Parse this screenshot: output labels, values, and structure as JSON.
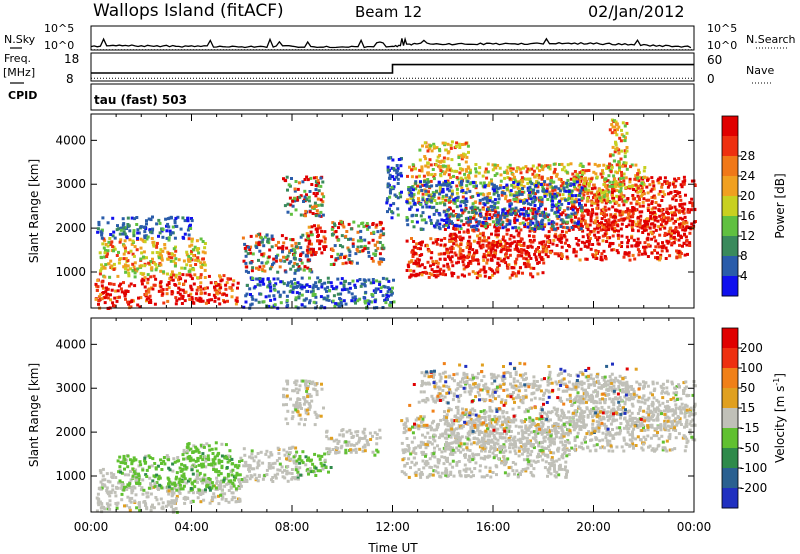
{
  "header": {
    "site": "Wallops Island (fitACF)",
    "beam": "Beam 12",
    "date": "02/Jan/2012"
  },
  "chart_data": [
    {
      "type": "line",
      "panel": "noise",
      "labels": {
        "left_top": "N.Sky",
        "right_top": "N.Search"
      },
      "y_ticks": [
        "10^5",
        "10^0"
      ],
      "ylim_log10": [
        0,
        5
      ],
      "series": [
        {
          "key": "nsky",
          "style": "solid",
          "x_hours": [
            0,
            1,
            2,
            3,
            4,
            5,
            6,
            7,
            8,
            9,
            10,
            11,
            12,
            12.5,
            13,
            14,
            15,
            16,
            17,
            18,
            19,
            20,
            21,
            22,
            23,
            24
          ],
          "log10_values": [
            0.8,
            0.9,
            0.85,
            0.8,
            0.75,
            0.7,
            0.65,
            0.7,
            0.75,
            0.7,
            0.65,
            0.7,
            0.7,
            1.1,
            1.3,
            1.2,
            1.25,
            1.3,
            1.25,
            1.3,
            1.4,
            1.35,
            1.2,
            1.0,
            0.8,
            0.6
          ]
        },
        {
          "key": "nsearch",
          "style": "dotted",
          "x_hours": [
            0,
            24
          ],
          "log10_values": [
            0.05,
            0.05
          ]
        }
      ]
    },
    {
      "type": "line",
      "panel": "frequency",
      "labels": {
        "left_top": "Freq.",
        "left_unit": "[MHz]",
        "left_bottom": "CPID",
        "right_top": "Nave"
      },
      "y_ticks_left": [
        "18",
        "8"
      ],
      "y_ticks_right": [
        "60",
        "0"
      ],
      "series": [
        {
          "key": "freq",
          "style": "solid",
          "x_hours": [
            0,
            0.2,
            12,
            12,
            24
          ],
          "values_mhz": [
            10.5,
            10.5,
            10.5,
            14,
            14
          ]
        },
        {
          "key": "nave",
          "style": "dotted",
          "x_hours": [
            0,
            24
          ],
          "values": [
            2,
            2
          ]
        }
      ]
    },
    {
      "type": "table",
      "panel": "cpid",
      "text": "tau (fast) 503"
    },
    {
      "type": "heatmap",
      "panel": "power",
      "ylabel": "Slant Range [km]",
      "y_ticks": [
        "1000",
        "2000",
        "3000",
        "4000"
      ],
      "ylim_km": [
        180,
        4600
      ],
      "colorbar": {
        "label": "Power [dB]",
        "ticks": [
          "4",
          "8",
          "12",
          "16",
          "20",
          "24",
          "28"
        ],
        "colors": [
          "#1010ee",
          "#2a5caa",
          "#3a8a5c",
          "#60c040",
          "#c8d020",
          "#f0a020",
          "#f07818",
          "#ee3010",
          "#e00000"
        ]
      },
      "regions": [
        {
          "x0": 0.1,
          "x1": 2.0,
          "y0": 200,
          "y1": 850,
          "level": "high"
        },
        {
          "x0": 2.0,
          "x1": 5.8,
          "y0": 300,
          "y1": 1000,
          "level": "high"
        },
        {
          "x0": 0.3,
          "x1": 4.5,
          "y0": 900,
          "y1": 1800,
          "level": "mid"
        },
        {
          "x0": 0.2,
          "x1": 4.0,
          "y0": 1800,
          "y1": 2300,
          "level": "low"
        },
        {
          "x0": 6.0,
          "x1": 8.8,
          "y0": 1000,
          "y1": 1900,
          "level": "mix"
        },
        {
          "x0": 7.6,
          "x1": 9.2,
          "y0": 2300,
          "y1": 3200,
          "level": "mix"
        },
        {
          "x0": 8.5,
          "x1": 9.3,
          "y0": 1400,
          "y1": 2100,
          "level": "high"
        },
        {
          "x0": 9.5,
          "x1": 11.6,
          "y0": 1200,
          "y1": 2200,
          "level": "mix"
        },
        {
          "x0": 6.0,
          "x1": 12.0,
          "y0": 200,
          "y1": 900,
          "level": "low"
        },
        {
          "x0": 11.7,
          "x1": 12.3,
          "y0": 2200,
          "y1": 3700,
          "level": "low"
        },
        {
          "x0": 12.5,
          "x1": 18.0,
          "y0": 900,
          "y1": 1800,
          "level": "high"
        },
        {
          "x0": 14.0,
          "x1": 23.8,
          "y0": 1300,
          "y1": 2500,
          "level": "high"
        },
        {
          "x0": 19.0,
          "x1": 24.0,
          "y0": 2000,
          "y1": 3200,
          "level": "high"
        },
        {
          "x0": 12.5,
          "x1": 22.0,
          "y0": 2600,
          "y1": 3500,
          "level": "mid"
        },
        {
          "x0": 13.0,
          "x1": 15.0,
          "y0": 3500,
          "y1": 4000,
          "level": "mid"
        },
        {
          "x0": 20.5,
          "x1": 21.3,
          "y0": 3000,
          "y1": 4500,
          "level": "mid"
        },
        {
          "x0": 12.5,
          "x1": 19.5,
          "y0": 2000,
          "y1": 3100,
          "level": "low"
        }
      ]
    },
    {
      "type": "heatmap",
      "panel": "velocity",
      "xlabel": "Time UT",
      "ylabel": "Slant Range [km]",
      "x_ticks": [
        "00:00",
        "04:00",
        "08:00",
        "12:00",
        "16:00",
        "20:00",
        "00:00"
      ],
      "y_ticks": [
        "1000",
        "2000",
        "3000",
        "4000"
      ],
      "ylim_km": [
        180,
        4600
      ],
      "colorbar": {
        "label": "Velocity [m s",
        "label_exponent": "-1",
        "label_close": "]",
        "ticks": [
          "200",
          "100",
          "50",
          "15",
          "-15",
          "-50",
          "-100",
          "-200"
        ],
        "colors": [
          "#2030c0",
          "#2a6090",
          "#2e8a4a",
          "#60c030",
          "#c0c0b8",
          "#e0a020",
          "#f08018",
          "#ee3010",
          "#e00000"
        ]
      },
      "regions": [
        {
          "x0": 0.1,
          "x1": 3.5,
          "y0": 200,
          "y1": 800,
          "level": "gray"
        },
        {
          "x0": 0.3,
          "x1": 2.0,
          "y0": 800,
          "y1": 1200,
          "level": "gray"
        },
        {
          "x0": 3.0,
          "x1": 6.0,
          "y0": 400,
          "y1": 1000,
          "level": "gray"
        },
        {
          "x0": 1.0,
          "x1": 6.0,
          "y0": 700,
          "y1": 1500,
          "level": "green"
        },
        {
          "x0": 3.5,
          "x1": 5.5,
          "y0": 1300,
          "y1": 1800,
          "level": "green"
        },
        {
          "x0": 6.0,
          "x1": 8.2,
          "y0": 900,
          "y1": 1700,
          "level": "gray"
        },
        {
          "x0": 8.0,
          "x1": 9.5,
          "y0": 1000,
          "y1": 1600,
          "level": "green"
        },
        {
          "x0": 7.6,
          "x1": 9.2,
          "y0": 2200,
          "y1": 3200,
          "level": "gray"
        },
        {
          "x0": 9.3,
          "x1": 11.5,
          "y0": 1500,
          "y1": 2100,
          "level": "gray"
        },
        {
          "x0": 12.3,
          "x1": 19.0,
          "y0": 1000,
          "y1": 2400,
          "level": "gray"
        },
        {
          "x0": 14.0,
          "x1": 24.0,
          "y0": 1600,
          "y1": 2600,
          "level": "gray"
        },
        {
          "x0": 19.0,
          "x1": 24.0,
          "y0": 2100,
          "y1": 3200,
          "level": "gray"
        },
        {
          "x0": 13.0,
          "x1": 21.5,
          "y0": 2700,
          "y1": 3400,
          "level": "gray"
        },
        {
          "x0": 12.5,
          "x1": 22.0,
          "y0": 2000,
          "y1": 3600,
          "level": "speck"
        }
      ]
    }
  ]
}
